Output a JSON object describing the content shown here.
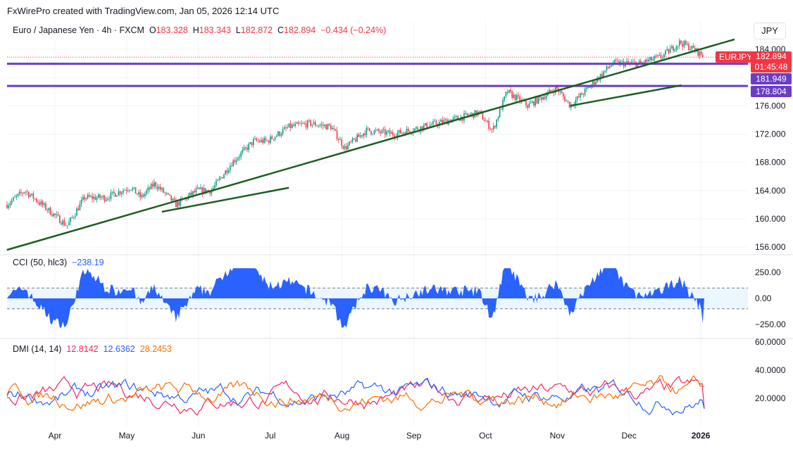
{
  "header": {
    "credit": "FxWirePro created with TradingView.com, Jan 05, 2026 12:14 UTC",
    "symbol": "Euro / Japanese Yen · 4h · FXCM",
    "o_label": "O",
    "o": "183.328",
    "h_label": "H",
    "h": "183.343",
    "l_label": "L",
    "l": "182.872",
    "c_label": "C",
    "c": "182.894",
    "change": "−0.434 (−0.24%)",
    "currency": "JPY"
  },
  "tags": {
    "symbol": "EURJPY",
    "last": "182.894",
    "countdown": "01:45:48",
    "level1": "181.949",
    "level2": "178.804"
  },
  "indicators": {
    "cci_label": "CCI (50, hlc3)",
    "cci_value": "−238.19",
    "dmi_label": "DMI (14, 14)",
    "dmi_plus": "12.8142",
    "dmi_minus": "12.6362",
    "adx": "28.2453"
  },
  "colors": {
    "up": "#089981",
    "down": "#f23645",
    "level": "#6a3dc4",
    "trend": "#1b5e20",
    "cci": "#2962ff",
    "dmi_plus": "#f7255e",
    "dmi_minus": "#2962ff",
    "adx": "#ff6d00"
  },
  "chart_data": {
    "type": "candlestick",
    "x_ticks": [
      "Apr",
      "May",
      "Jun",
      "Jul",
      "Aug",
      "Sep",
      "Oct",
      "Nov",
      "Dec",
      "2026"
    ],
    "price_ticks": [
      "184.000",
      "176.000",
      "172.000",
      "168.000",
      "164.000",
      "160.000",
      "156.000"
    ],
    "price_range": [
      155,
      188
    ],
    "price_path_months_since_apr": [
      [
        -0.67,
        162
      ],
      [
        -0.42,
        164
      ],
      [
        -0.18,
        162
      ],
      [
        0.17,
        159
      ],
      [
        0.41,
        163
      ],
      [
        0.71,
        163
      ],
      [
        1.05,
        164.5
      ],
      [
        1.2,
        163
      ],
      [
        1.39,
        165
      ],
      [
        1.69,
        162
      ],
      [
        1.98,
        164
      ],
      [
        2.18,
        164
      ],
      [
        2.47,
        168
      ],
      [
        2.77,
        171
      ],
      [
        2.96,
        171
      ],
      [
        3.26,
        173
      ],
      [
        3.55,
        173.5
      ],
      [
        3.85,
        173
      ],
      [
        4.04,
        170
      ],
      [
        4.34,
        172.5
      ],
      [
        4.73,
        172
      ],
      [
        5.12,
        173
      ],
      [
        5.52,
        174
      ],
      [
        5.91,
        175
      ],
      [
        6.1,
        172.5
      ],
      [
        6.3,
        178
      ],
      [
        6.59,
        176
      ],
      [
        6.99,
        178.5
      ],
      [
        7.18,
        176
      ],
      [
        7.48,
        179
      ],
      [
        7.77,
        182
      ],
      [
        8.16,
        182
      ],
      [
        8.46,
        183
      ],
      [
        8.71,
        185
      ],
      [
        8.9,
        184
      ],
      [
        9.05,
        182.9
      ]
    ],
    "horizontal_levels": [
      181.949,
      178.804
    ],
    "trendlines": [
      [
        [
          -0.67,
          155.6
        ],
        [
          9.47,
          185.4
        ]
      ],
      [
        [
          1.49,
          161.0
        ],
        [
          3.26,
          164.4
        ]
      ],
      [
        [
          7.18,
          176.0
        ],
        [
          8.73,
          178.9
        ]
      ]
    ],
    "cci": {
      "ticks": [
        "250.00",
        "0.00",
        "−250.00"
      ],
      "bands": [
        100,
        -100
      ],
      "last": -238.19
    },
    "dmi": {
      "ticks": [
        "60.0000",
        "40.0000",
        "20.0000"
      ],
      "last": {
        "plus": 12.8142,
        "minus": 12.6362,
        "adx": 28.2453
      }
    }
  }
}
